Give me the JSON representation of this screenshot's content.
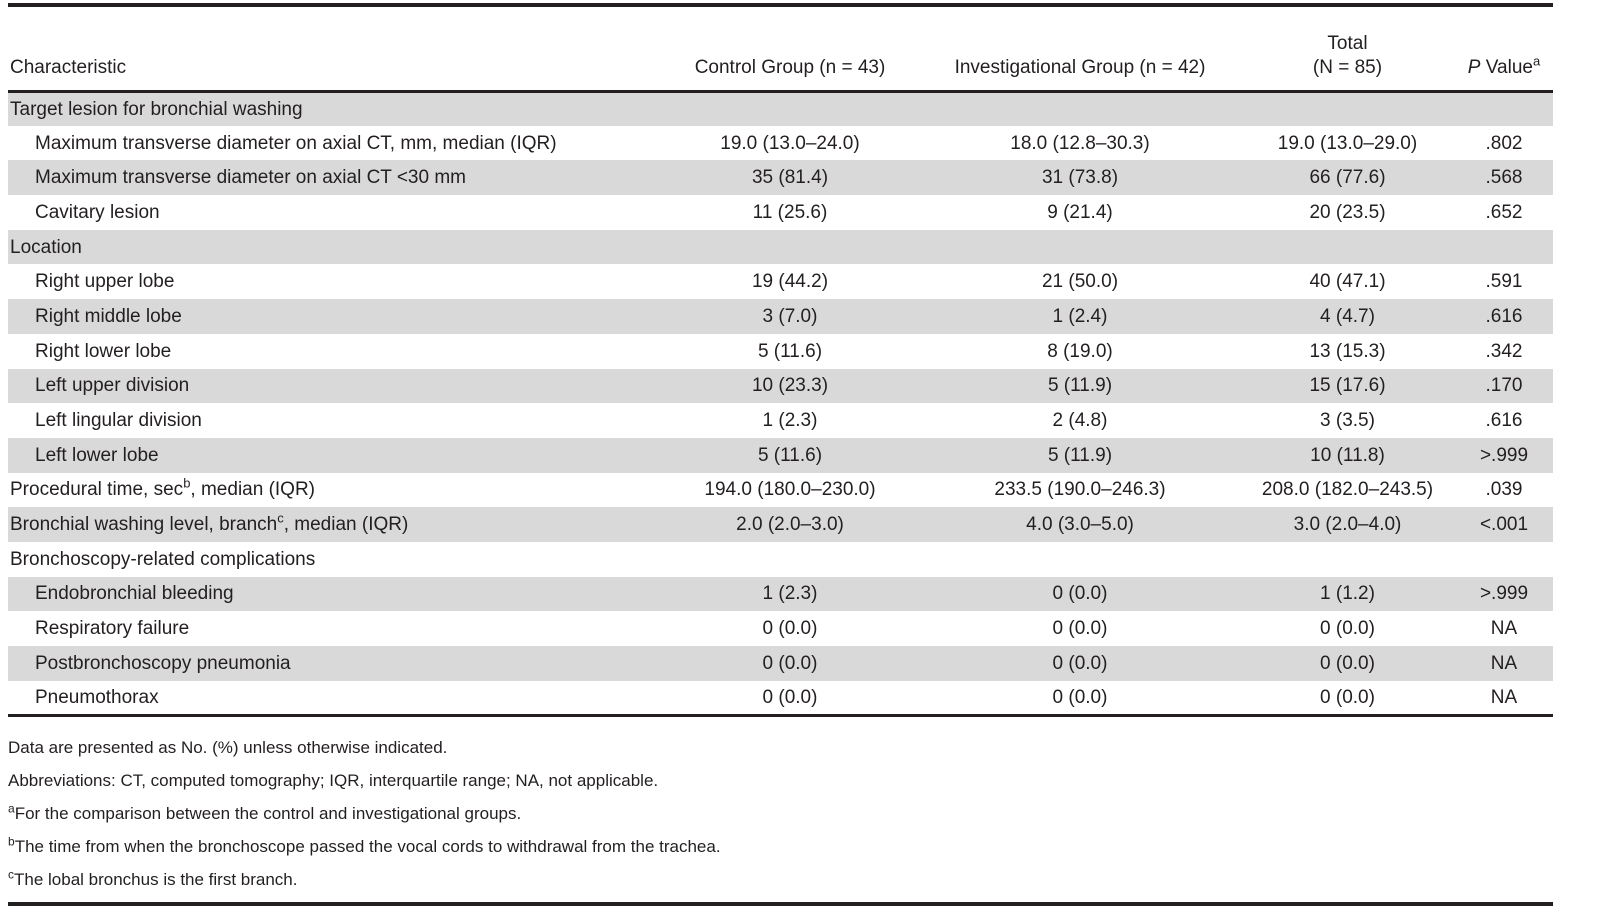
{
  "table": {
    "header": {
      "characteristic": "Characteristic",
      "control": "Control Group (n = 43)",
      "investigational": "Investigational Group (n = 42)",
      "total_line1": "Total",
      "total_line2": "(N = 85)",
      "p_value": {
        "italic": "P",
        "text": " Value",
        "sup": "a"
      }
    },
    "rows": [
      {
        "label_pre": "Target lesion for bronchial washing",
        "indent": false,
        "values": [
          "",
          "",
          "",
          ""
        ]
      },
      {
        "label_pre": "Maximum transverse diameter on axial CT, mm, median (IQR)",
        "indent": true,
        "values": [
          "19.0 (13.0–24.0)",
          "18.0 (12.8–30.3)",
          "19.0 (13.0–29.0)",
          ".802"
        ]
      },
      {
        "label_pre": "Maximum transverse diameter on axial CT <30 mm",
        "indent": true,
        "values": [
          "35 (81.4)",
          "31 (73.8)",
          "66 (77.6)",
          ".568"
        ]
      },
      {
        "label_pre": "Cavitary lesion",
        "indent": true,
        "values": [
          "11 (25.6)",
          "9 (21.4)",
          "20 (23.5)",
          ".652"
        ]
      },
      {
        "label_pre": "Location",
        "indent": false,
        "values": [
          "",
          "",
          "",
          ""
        ]
      },
      {
        "label_pre": "Right upper lobe",
        "indent": true,
        "values": [
          "19 (44.2)",
          "21 (50.0)",
          "40 (47.1)",
          ".591"
        ]
      },
      {
        "label_pre": "Right middle lobe",
        "indent": true,
        "values": [
          "3 (7.0)",
          "1 (2.4)",
          "4 (4.7)",
          ".616"
        ]
      },
      {
        "label_pre": "Right lower lobe",
        "indent": true,
        "values": [
          "5 (11.6)",
          "8 (19.0)",
          "13 (15.3)",
          ".342"
        ]
      },
      {
        "label_pre": "Left upper division",
        "indent": true,
        "values": [
          "10 (23.3)",
          "5 (11.9)",
          "15 (17.6)",
          ".170"
        ]
      },
      {
        "label_pre": "Left lingular division",
        "indent": true,
        "values": [
          "1 (2.3)",
          "2 (4.8)",
          "3 (3.5)",
          ".616"
        ]
      },
      {
        "label_pre": "Left lower lobe",
        "indent": true,
        "values": [
          "5 (11.6)",
          "5 (11.9)",
          "10 (11.8)",
          ">.999"
        ]
      },
      {
        "label_pre": "Procedural time, sec",
        "sup": "b",
        "label_post": ", median (IQR)",
        "indent": false,
        "values": [
          "194.0 (180.0–230.0)",
          "233.5 (190.0–246.3)",
          "208.0 (182.0–243.5)",
          ".039"
        ]
      },
      {
        "label_pre": "Bronchial washing level, branch",
        "sup": "c",
        "label_post": ", median (IQR)",
        "indent": false,
        "values": [
          "2.0 (2.0–3.0)",
          "4.0 (3.0–5.0)",
          "3.0 (2.0–4.0)",
          "<.001"
        ]
      },
      {
        "label_pre": "Bronchoscopy-related complications",
        "indent": false,
        "values": [
          "",
          "",
          "",
          ""
        ]
      },
      {
        "label_pre": "Endobronchial bleeding",
        "indent": true,
        "values": [
          "1 (2.3)",
          "0 (0.0)",
          "1 (1.2)",
          ">.999"
        ]
      },
      {
        "label_pre": "Respiratory failure",
        "indent": true,
        "values": [
          "0 (0.0)",
          "0 (0.0)",
          "0 (0.0)",
          "NA"
        ]
      },
      {
        "label_pre": "Postbronchoscopy pneumonia",
        "indent": true,
        "values": [
          "0 (0.0)",
          "0 (0.0)",
          "0 (0.0)",
          "NA"
        ]
      },
      {
        "label_pre": "Pneumothorax",
        "indent": true,
        "values": [
          "0 (0.0)",
          "0 (0.0)",
          "0 (0.0)",
          "NA"
        ]
      }
    ]
  },
  "footnotes": [
    {
      "sup": "",
      "text": "Data are presented as No. (%) unless otherwise indicated."
    },
    {
      "sup": "",
      "text": "Abbreviations: CT, computed tomography; IQR, interquartile range; NA, not applicable."
    },
    {
      "sup": "a",
      "text": "For the comparison between the control and investigational groups."
    },
    {
      "sup": "b",
      "text": "The time from when the bronchoscope passed the vocal cords to withdrawal from the trachea."
    },
    {
      "sup": "c",
      "text": "The lobal bronchus is the first branch."
    }
  ],
  "colors": {
    "band_gray": "#d9d9d9",
    "text": "#231f20",
    "rule": "#231f20"
  }
}
